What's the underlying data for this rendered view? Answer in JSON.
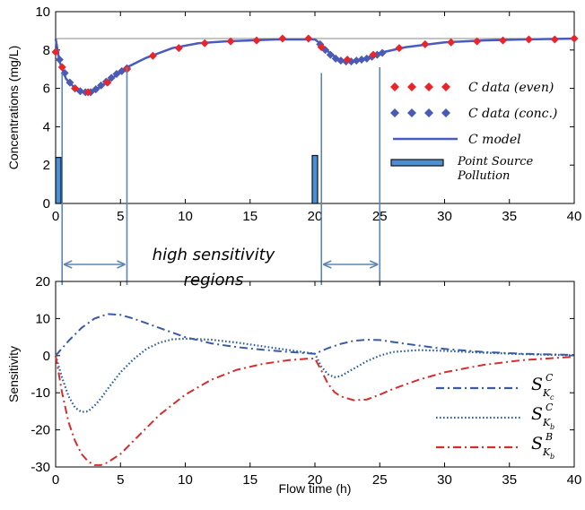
{
  "colors": {
    "even": "#e8262a",
    "conc": "#4a5bb5",
    "model": "#4a5bc0",
    "source": "#4a90d6",
    "kc": "#3a5aa8",
    "kb": "#2f5f9e",
    "kbB": "#d62e2e",
    "arrow": "#5f86b3"
  },
  "chart_data": [
    {
      "type": "line",
      "ylabel": "Concentrations (mg/L)",
      "xlabel": "",
      "xlim": [
        0,
        40
      ],
      "ylim": [
        0,
        10
      ],
      "x_ticks": [
        "0",
        "5",
        "10",
        "15",
        "20",
        "25",
        "30",
        "35",
        "40"
      ],
      "y_ticks": [
        "0",
        "2",
        "4",
        "6",
        "8",
        "10"
      ],
      "reference_line": 8.6,
      "legend": [
        {
          "label": "C  data (even)",
          "marker": "diamond",
          "color": "even"
        },
        {
          "label": "C  data (conc.)",
          "marker": "diamond",
          "color": "conc"
        },
        {
          "label": "C  model",
          "marker": "line",
          "color": "model"
        },
        {
          "label": "Point Source Pollution",
          "marker": "bar",
          "color": "source"
        }
      ],
      "series": [
        {
          "name": "C  model",
          "x": [
            0,
            0.3,
            0.8,
            1.5,
            2.5,
            3.5,
            4.5,
            5.5,
            7,
            9,
            11,
            13,
            15,
            17,
            19,
            20,
            20.5,
            21.2,
            22,
            23,
            24,
            25,
            27,
            30,
            33,
            36,
            40
          ],
          "y": [
            8.6,
            7.4,
            6.5,
            6.0,
            5.75,
            6.1,
            6.6,
            7.1,
            7.6,
            8.1,
            8.35,
            8.45,
            8.5,
            8.55,
            8.55,
            8.55,
            8.3,
            7.8,
            7.45,
            7.4,
            7.55,
            7.85,
            8.15,
            8.4,
            8.5,
            8.55,
            8.6
          ]
        },
        {
          "name": "C  data (even)",
          "x": [
            0,
            0.5,
            1.5,
            2.5,
            4,
            5.5,
            7.5,
            9.5,
            11.5,
            13.5,
            15.5,
            17.5,
            19.5,
            20.5,
            22.5,
            24.5,
            26.5,
            28.5,
            30.5,
            32.5,
            34.5,
            36.5,
            38.5,
            40
          ],
          "y": [
            7.9,
            7.1,
            6.0,
            5.8,
            6.3,
            7.0,
            7.7,
            8.1,
            8.35,
            8.45,
            8.5,
            8.6,
            8.6,
            8.15,
            7.5,
            7.75,
            8.1,
            8.3,
            8.4,
            8.45,
            8.5,
            8.55,
            8.55,
            8.6
          ]
        },
        {
          "name": "C  data (conc.)",
          "x": [
            0.3,
            0.7,
            1.1,
            1.5,
            1.9,
            2.3,
            2.7,
            3.1,
            3.5,
            3.9,
            4.3,
            4.7,
            5.1,
            5.5,
            20.4,
            20.8,
            21.2,
            21.6,
            22,
            22.4,
            22.8,
            23.2,
            23.6,
            24,
            24.4,
            24.8,
            25.2
          ],
          "y": [
            7.5,
            6.8,
            6.3,
            6.0,
            5.85,
            5.8,
            5.8,
            5.95,
            6.15,
            6.35,
            6.55,
            6.75,
            6.9,
            7.05,
            8.3,
            8.0,
            7.75,
            7.55,
            7.45,
            7.4,
            7.4,
            7.45,
            7.5,
            7.55,
            7.65,
            7.75,
            7.85
          ]
        }
      ],
      "point_sources": [
        {
          "x": 0,
          "height": 2.4
        },
        {
          "x": 20,
          "height": 2.5
        }
      ]
    },
    {
      "type": "line",
      "ylabel": "Sensitivity",
      "xlabel": "Flow time (h)",
      "xlim": [
        0,
        40
      ],
      "ylim": [
        -30,
        20
      ],
      "x_ticks": [
        "0",
        "5",
        "10",
        "15",
        "20",
        "25",
        "30",
        "35",
        "40"
      ],
      "y_ticks": [
        "-30",
        "-20",
        "-10",
        "0",
        "10",
        "20"
      ],
      "legend_position": "bottom-right",
      "series": [
        {
          "name": "S_Kc^C",
          "color": "kc",
          "style": "dashdot",
          "x": [
            0,
            1,
            2,
            3,
            4,
            5,
            6,
            8,
            10,
            12,
            14,
            16,
            18,
            20,
            21,
            22,
            23,
            24,
            25,
            27,
            30,
            33,
            36,
            40
          ],
          "y": [
            0,
            4,
            7.5,
            10,
            11.2,
            11,
            10,
            7.5,
            5,
            3.3,
            2.3,
            1.6,
            1.0,
            0.5,
            2.0,
            3.2,
            4.0,
            4.3,
            4.2,
            3.2,
            1.8,
            1.0,
            0.5,
            0.2
          ]
        },
        {
          "name": "S_Kb^C",
          "color": "kb",
          "style": "dotted",
          "x": [
            0,
            0.5,
            1,
            1.5,
            2,
            2.5,
            3,
            3.5,
            4,
            5,
            6,
            7,
            8,
            9,
            10,
            12,
            14,
            16,
            18,
            20,
            20.5,
            21,
            21.5,
            22,
            22.5,
            23,
            24,
            25,
            26,
            28,
            30,
            33,
            36,
            40
          ],
          "y": [
            0,
            -6,
            -11,
            -14,
            -15.2,
            -15,
            -13.5,
            -11.5,
            -9,
            -4.5,
            -1,
            1.8,
            3.5,
            4.4,
            4.6,
            4.3,
            3.5,
            2.5,
            1.5,
            0.5,
            -3,
            -5,
            -5.8,
            -5.5,
            -4.5,
            -3.5,
            -1.5,
            0,
            1.0,
            1.5,
            1.3,
            0.8,
            0.4,
            0.1
          ]
        },
        {
          "name": "S_Kb^B",
          "color": "kbB",
          "style": "dashdot",
          "x": [
            0,
            0.5,
            1,
            1.5,
            2,
            2.5,
            3,
            3.5,
            4,
            5,
            6,
            7,
            8,
            10,
            12,
            14,
            16,
            18,
            19.5,
            20,
            20.5,
            21,
            21.5,
            22,
            23,
            24,
            25,
            26,
            28,
            30,
            33,
            36,
            40
          ],
          "y": [
            0,
            -10,
            -18,
            -23,
            -26.5,
            -28.5,
            -29.5,
            -29.5,
            -28.8,
            -26.5,
            -23,
            -19.5,
            -16,
            -10.5,
            -6.5,
            -3.8,
            -2.2,
            -1.2,
            -0.8,
            -0.8,
            -4,
            -7.5,
            -9.8,
            -11,
            -12,
            -11.8,
            -10.5,
            -9,
            -6.5,
            -4.5,
            -2.5,
            -1.2,
            -0.3
          ]
        }
      ]
    }
  ],
  "annotation": {
    "line1": "high sensitivity regions",
    "line1a": "high sensitivity",
    "line1b": "regions"
  },
  "regions": [
    {
      "from": 0.5,
      "to": 5.5
    },
    {
      "from": 20.5,
      "to": 25.0
    }
  ],
  "legend_bottom": [
    {
      "label": "S",
      "sub": "Kc",
      "sup": "C",
      "color": "kc",
      "style": "dashdot"
    },
    {
      "label": "S",
      "sub": "Kb",
      "sup": "C",
      "color": "kb",
      "style": "dotted"
    },
    {
      "label": "S",
      "sub": "Kb",
      "sup": "B",
      "color": "kbB",
      "style": "dashdot"
    }
  ]
}
